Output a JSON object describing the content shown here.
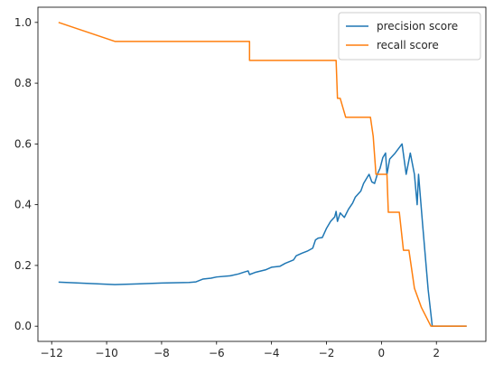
{
  "chart_data": {
    "type": "line",
    "title": "",
    "xlabel": "",
    "ylabel": "",
    "xlim": [
      -12.5,
      3.8
    ],
    "ylim": [
      -0.05,
      1.05
    ],
    "xticks": [
      -12,
      -10,
      -8,
      -6,
      -4,
      -2,
      0,
      2
    ],
    "xtick_labels": [
      "−12",
      "−10",
      "−8",
      "−6",
      "−4",
      "−2",
      "0",
      "2"
    ],
    "yticks": [
      0.0,
      0.2,
      0.4,
      0.6,
      0.8,
      1.0
    ],
    "ytick_labels": [
      "0.0",
      "0.2",
      "0.4",
      "0.6",
      "0.8",
      "1.0"
    ],
    "grid": false,
    "legend_position": "top-right",
    "series": [
      {
        "name": "precision score",
        "color": "#1f77b4",
        "points": [
          [
            -11.75,
            0.145
          ],
          [
            -9.7,
            0.137
          ],
          [
            -8.9,
            0.139
          ],
          [
            -8.0,
            0.142
          ],
          [
            -7.0,
            0.144
          ],
          [
            -6.75,
            0.146
          ],
          [
            -6.5,
            0.155
          ],
          [
            -6.2,
            0.158
          ],
          [
            -6.0,
            0.162
          ],
          [
            -5.5,
            0.166
          ],
          [
            -5.2,
            0.172
          ],
          [
            -5.0,
            0.178
          ],
          [
            -4.85,
            0.182
          ],
          [
            -4.8,
            0.17
          ],
          [
            -4.6,
            0.177
          ],
          [
            -4.2,
            0.186
          ],
          [
            -4.0,
            0.194
          ],
          [
            -3.7,
            0.197
          ],
          [
            -3.5,
            0.207
          ],
          [
            -3.2,
            0.218
          ],
          [
            -3.1,
            0.232
          ],
          [
            -2.9,
            0.24
          ],
          [
            -2.7,
            0.247
          ],
          [
            -2.5,
            0.257
          ],
          [
            -2.4,
            0.284
          ],
          [
            -2.3,
            0.29
          ],
          [
            -2.15,
            0.292
          ],
          [
            -2.0,
            0.322
          ],
          [
            -1.85,
            0.345
          ],
          [
            -1.7,
            0.36
          ],
          [
            -1.65,
            0.378
          ],
          [
            -1.6,
            0.345
          ],
          [
            -1.5,
            0.373
          ],
          [
            -1.35,
            0.358
          ],
          [
            -1.2,
            0.385
          ],
          [
            -1.05,
            0.405
          ],
          [
            -0.95,
            0.425
          ],
          [
            -0.75,
            0.445
          ],
          [
            -0.65,
            0.47
          ],
          [
            -0.55,
            0.485
          ],
          [
            -0.45,
            0.5
          ],
          [
            -0.35,
            0.475
          ],
          [
            -0.25,
            0.47
          ],
          [
            -0.15,
            0.5
          ],
          [
            -0.05,
            0.52
          ],
          [
            0.05,
            0.555
          ],
          [
            0.15,
            0.57
          ],
          [
            0.2,
            0.5
          ],
          [
            0.3,
            0.55
          ],
          [
            0.5,
            0.57
          ],
          [
            0.75,
            0.6
          ],
          [
            0.9,
            0.5
          ],
          [
            1.05,
            0.57
          ],
          [
            1.2,
            0.5
          ],
          [
            1.3,
            0.4
          ],
          [
            1.35,
            0.5
          ],
          [
            1.5,
            0.333
          ],
          [
            1.7,
            0.12
          ],
          [
            1.85,
            0.0
          ],
          [
            3.1,
            0.0
          ]
        ]
      },
      {
        "name": "recall score",
        "color": "#ff7f0e",
        "points": [
          [
            -11.75,
            1.0
          ],
          [
            -9.7,
            0.9375
          ],
          [
            -4.8,
            0.9375
          ],
          [
            -4.8,
            0.875
          ],
          [
            -1.65,
            0.875
          ],
          [
            -1.6,
            0.75
          ],
          [
            -1.5,
            0.75
          ],
          [
            -1.3,
            0.6875
          ],
          [
            -0.4,
            0.6875
          ],
          [
            -0.3,
            0.625
          ],
          [
            -0.2,
            0.5
          ],
          [
            0.2,
            0.5
          ],
          [
            0.25,
            0.375
          ],
          [
            0.65,
            0.375
          ],
          [
            0.8,
            0.25
          ],
          [
            1.0,
            0.25
          ],
          [
            1.2,
            0.125
          ],
          [
            1.45,
            0.0625
          ],
          [
            1.8,
            0.0
          ],
          [
            3.1,
            0.0
          ]
        ]
      }
    ]
  }
}
